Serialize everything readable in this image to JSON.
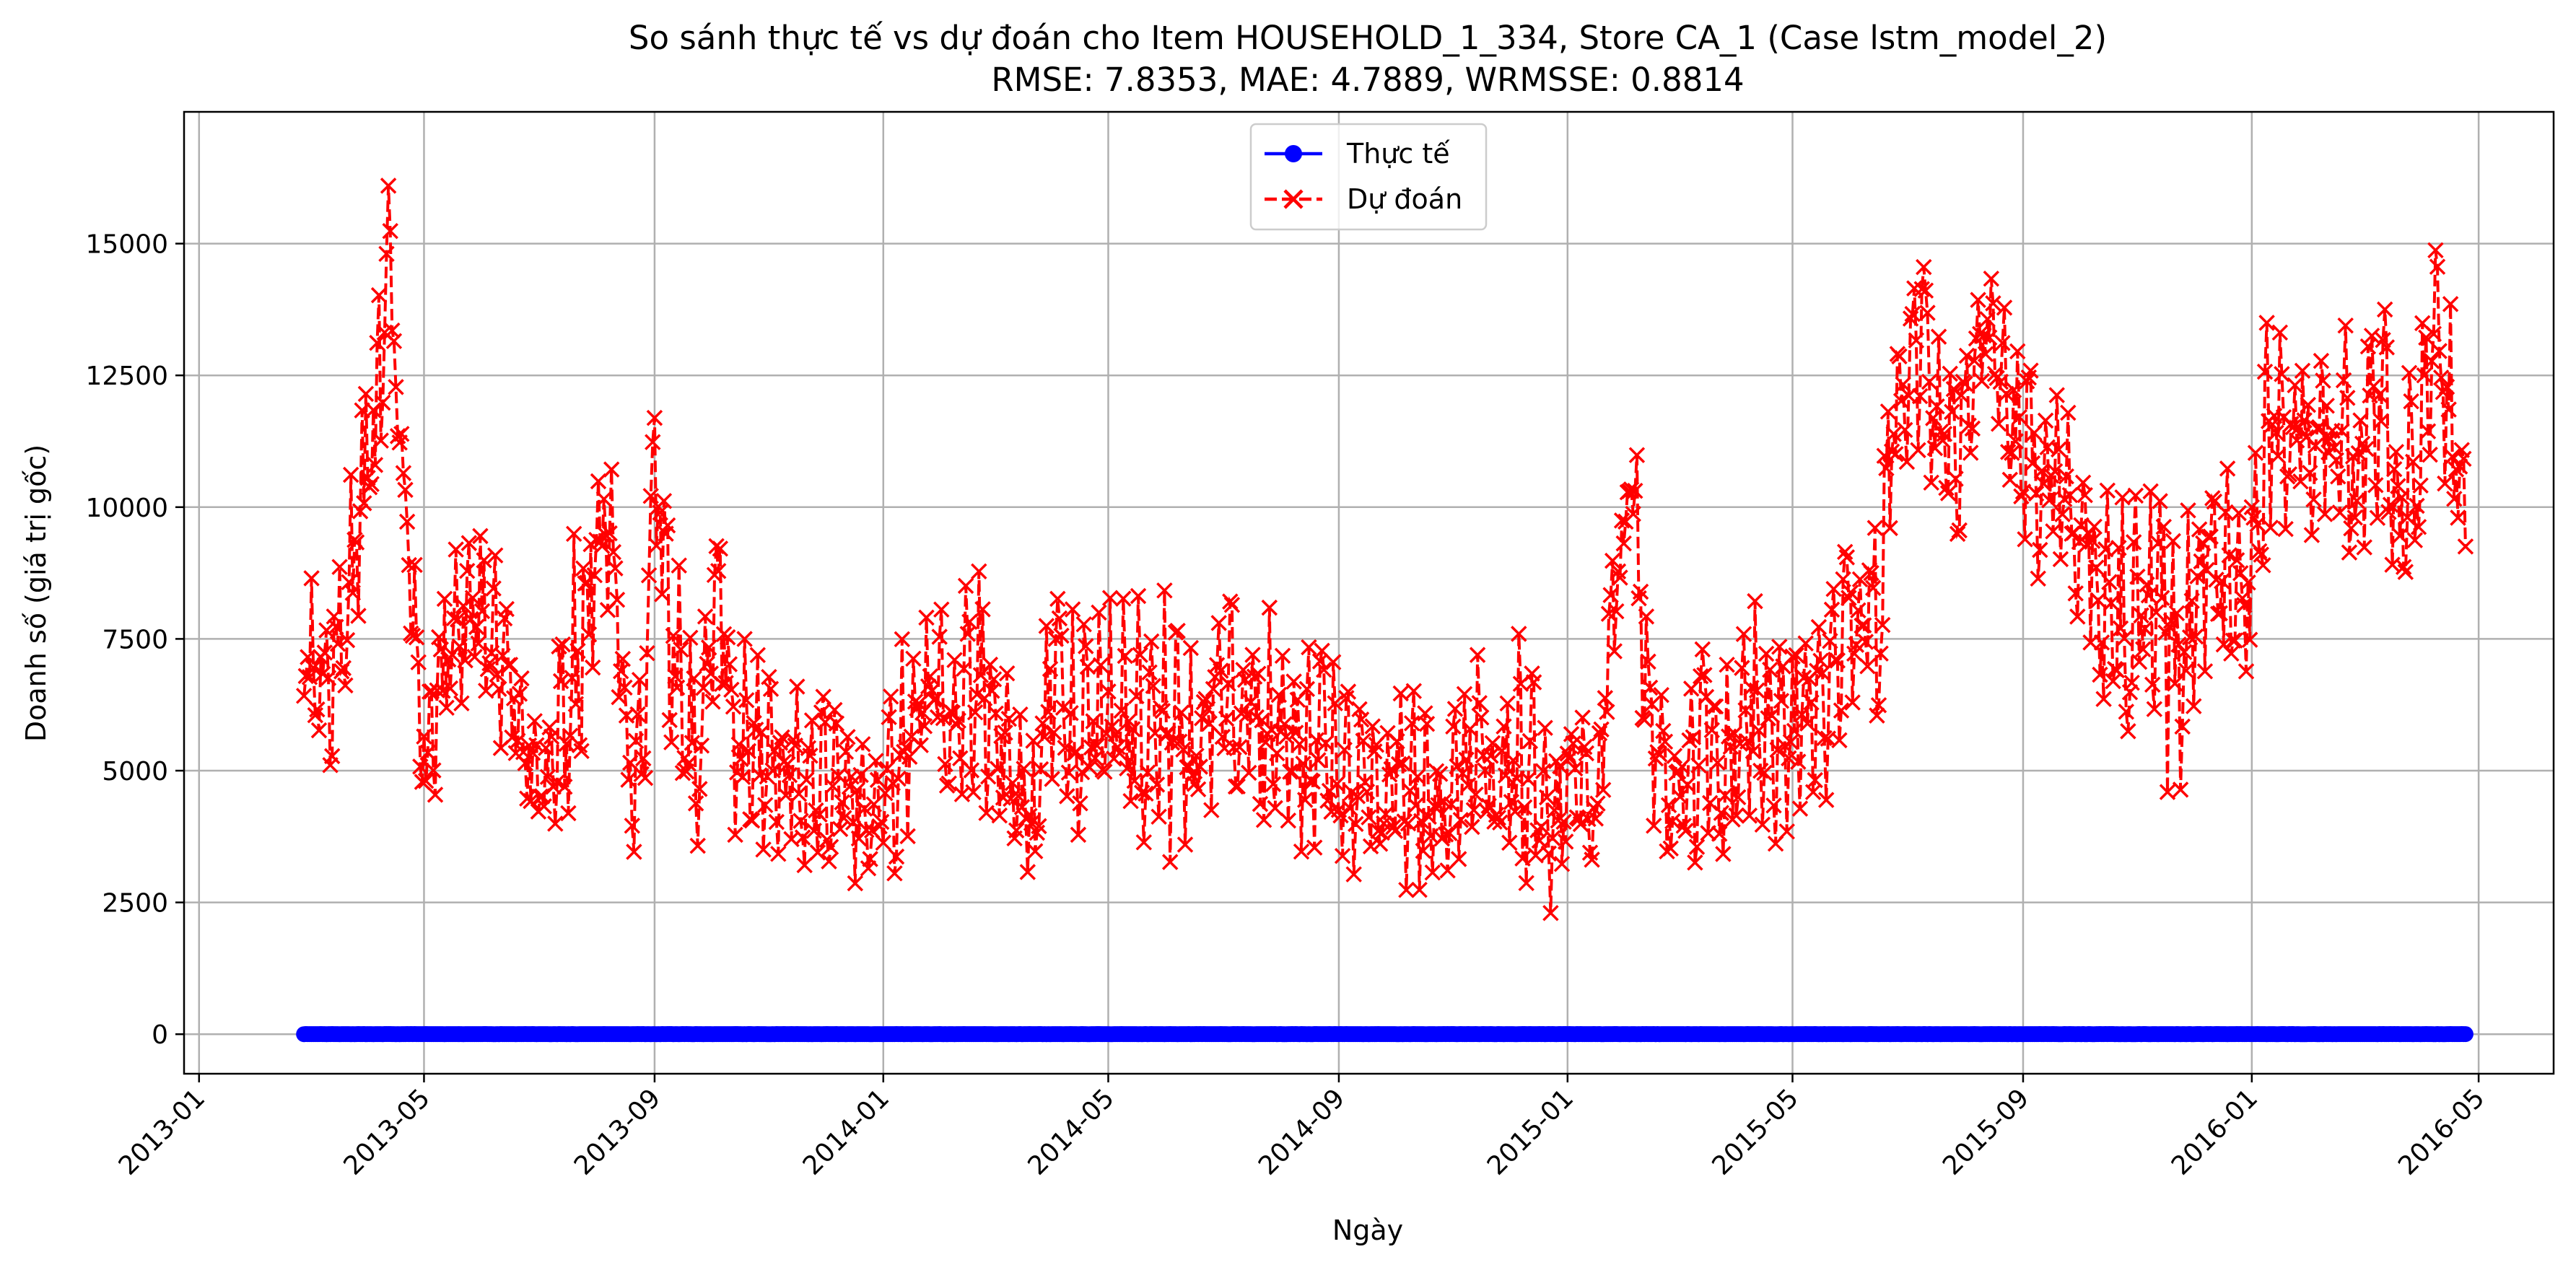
{
  "chart_data": {
    "type": "line",
    "title": "So sánh thực tế vs dự đoán cho Item HOUSEHOLD_1_334, Store CA_1 (Case lstm_model_2)",
    "subtitle": "RMSE: 7.8353, MAE: 4.7889, WRMSSE: 0.8814",
    "xlabel": "Ngày",
    "ylabel": "Doanh số (giá trị gốc)",
    "xlim": [
      "2012-12-24",
      "2016-06-10"
    ],
    "ylim": [
      -750,
      17500
    ],
    "grid": true,
    "legend_position": "top-center",
    "x_ticks": [
      "2013-01",
      "2013-05",
      "2013-09",
      "2014-01",
      "2014-05",
      "2014-09",
      "2015-01",
      "2015-05",
      "2015-09",
      "2016-01",
      "2016-05"
    ],
    "y_ticks": [
      0,
      2500,
      5000,
      7500,
      10000,
      12500,
      15000
    ],
    "date_range": [
      "2013-02-26",
      "2016-04-24"
    ],
    "series": [
      {
        "name": "Thực tế",
        "color": "#0000ff",
        "style": "solid",
        "marker": "circle",
        "level_points": [
          [
            "2013-02-26",
            0
          ],
          [
            "2013-06-01",
            0
          ],
          [
            "2013-10-01",
            0
          ],
          [
            "2014-02-01",
            0
          ],
          [
            "2014-06-01",
            0
          ],
          [
            "2014-10-01",
            0
          ],
          [
            "2015-02-01",
            0
          ],
          [
            "2015-06-01",
            0
          ],
          [
            "2015-10-01",
            0
          ],
          [
            "2016-02-01",
            0
          ],
          [
            "2016-04-24",
            0
          ]
        ]
      },
      {
        "name": "Dự đoán",
        "color": "#ff0000",
        "style": "dashed",
        "marker": "x",
        "envelope": [
          [
            "2013-02-26",
            5800,
            8800
          ],
          [
            "2013-03-10",
            4100,
            8500
          ],
          [
            "2013-03-25",
            6500,
            11500
          ],
          [
            "2013-04-05",
            7900,
            14600
          ],
          [
            "2013-04-12",
            12500,
            16600
          ],
          [
            "2013-04-20",
            9700,
            11000
          ],
          [
            "2013-05-01",
            3500,
            7500
          ],
          [
            "2013-05-20",
            5800,
            9700
          ],
          [
            "2013-06-05",
            5800,
            9900
          ],
          [
            "2013-06-20",
            4600,
            8500
          ],
          [
            "2013-07-01",
            2800,
            6000
          ],
          [
            "2013-07-15",
            3600,
            8300
          ],
          [
            "2013-07-28",
            3800,
            12500
          ],
          [
            "2013-08-05",
            7300,
            13000
          ],
          [
            "2013-08-18",
            3200,
            7000
          ],
          [
            "2013-08-25",
            2700,
            6800
          ],
          [
            "2013-09-01",
            9000,
            13000
          ],
          [
            "2013-09-12",
            3800,
            9500
          ],
          [
            "2013-09-25",
            3200,
            7000
          ],
          [
            "2013-10-05",
            6500,
            11600
          ],
          [
            "2013-10-15",
            2700,
            8000
          ],
          [
            "2013-11-01",
            3200,
            7800
          ],
          [
            "2013-11-20",
            3000,
            6600
          ],
          [
            "2013-12-10",
            2900,
            6500
          ],
          [
            "2013-12-28",
            2400,
            5700
          ],
          [
            "2014-01-10",
            3000,
            7800
          ],
          [
            "2014-02-01",
            3800,
            8700
          ],
          [
            "2014-02-20",
            4500,
            9300
          ],
          [
            "2014-03-05",
            3400,
            8300
          ],
          [
            "2014-03-22",
            1800,
            5800
          ],
          [
            "2014-04-01",
            4200,
            8700
          ],
          [
            "2014-04-20",
            3300,
            8300
          ],
          [
            "2014-05-10",
            3300,
            8700
          ],
          [
            "2014-06-01",
            3200,
            8500
          ],
          [
            "2014-06-20",
            3100,
            7300
          ],
          [
            "2014-07-01",
            4000,
            9000
          ],
          [
            "2014-07-20",
            3700,
            8300
          ],
          [
            "2014-08-10",
            3400,
            8000
          ],
          [
            "2014-09-01",
            3200,
            7500
          ],
          [
            "2014-09-20",
            2400,
            6200
          ],
          [
            "2014-10-10",
            2500,
            6700
          ],
          [
            "2014-10-25",
            2600,
            5800
          ],
          [
            "2014-11-10",
            2800,
            7800
          ],
          [
            "2014-11-25",
            2700,
            6500
          ],
          [
            "2014-12-10",
            2500,
            8200
          ],
          [
            "2014-12-25",
            2200,
            5200
          ],
          [
            "2015-01-05",
            2300,
            7200
          ],
          [
            "2015-01-15",
            1900,
            5000
          ],
          [
            "2015-01-25",
            5000,
            10500
          ],
          [
            "2015-02-05",
            8300,
            13100
          ],
          [
            "2015-02-15",
            3000,
            7200
          ],
          [
            "2015-03-01",
            2800,
            6700
          ],
          [
            "2015-03-15",
            3000,
            8100
          ],
          [
            "2015-04-01",
            3200,
            8800
          ],
          [
            "2015-04-15",
            2900,
            8200
          ],
          [
            "2015-05-01",
            3300,
            7800
          ],
          [
            "2015-05-15",
            3600,
            9100
          ],
          [
            "2015-06-01",
            6300,
            10300
          ],
          [
            "2015-06-15",
            4400,
            11000
          ],
          [
            "2015-06-25",
            9800,
            13600
          ],
          [
            "2015-07-10",
            11300,
            15300
          ],
          [
            "2015-07-20",
            9100,
            13300
          ],
          [
            "2015-08-01",
            9200,
            13400
          ],
          [
            "2015-08-10",
            11300,
            15100
          ],
          [
            "2015-08-20",
            10200,
            14200
          ],
          [
            "2015-09-01",
            9000,
            13600
          ],
          [
            "2015-09-10",
            8000,
            13000
          ],
          [
            "2015-09-25",
            8300,
            12500
          ],
          [
            "2015-10-10",
            6300,
            11500
          ],
          [
            "2015-10-25",
            5000,
            10500
          ],
          [
            "2015-11-10",
            4800,
            11200
          ],
          [
            "2015-11-25",
            4000,
            9000
          ],
          [
            "2015-12-05",
            6000,
            12300
          ],
          [
            "2015-12-20",
            5900,
            10900
          ],
          [
            "2016-01-01",
            4900,
            11400
          ],
          [
            "2016-01-10",
            9000,
            13800
          ],
          [
            "2016-01-25",
            9000,
            13600
          ],
          [
            "2016-02-10",
            8900,
            14300
          ],
          [
            "2016-02-25",
            7400,
            13500
          ],
          [
            "2016-03-05",
            9900,
            15300
          ],
          [
            "2016-03-20",
            8000,
            12500
          ],
          [
            "2016-04-05",
            9200,
            15900
          ],
          [
            "2016-04-15",
            10000,
            14200
          ],
          [
            "2016-04-24",
            8000,
            11800
          ]
        ]
      }
    ]
  }
}
